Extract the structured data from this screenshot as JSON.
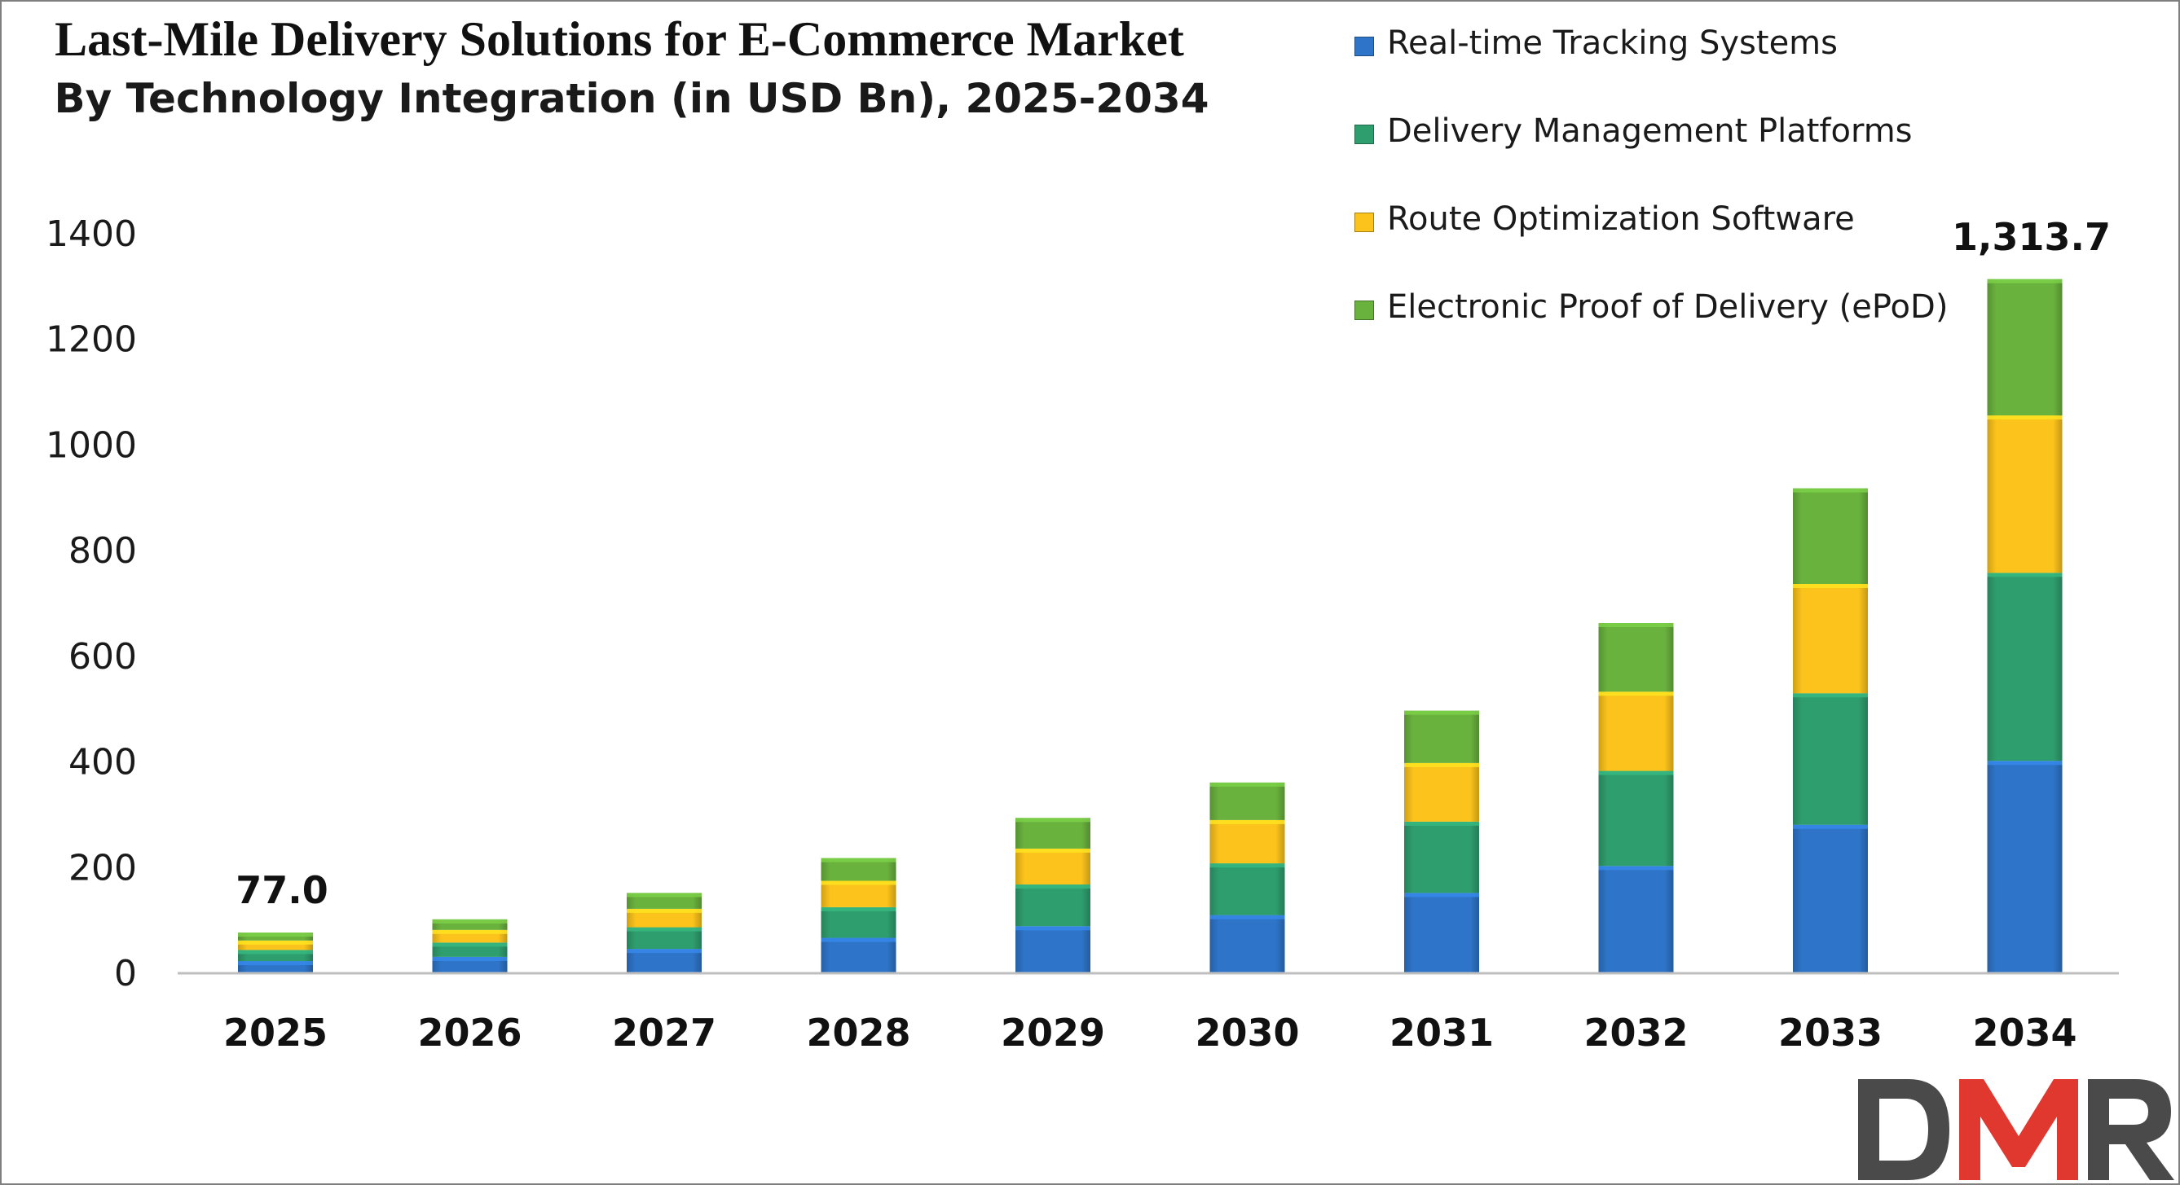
{
  "chart_data": {
    "type": "bar",
    "stacked": true,
    "title": "Last-Mile Delivery Solutions for E-Commerce Market",
    "subtitle": "By Technology Integration (in USD Bn), 2025-2034",
    "xlabel": "",
    "ylabel": "",
    "ylim": [
      0,
      1400
    ],
    "yticks": [
      "0",
      "200",
      "400",
      "600",
      "800",
      "1000",
      "1200",
      "1400"
    ],
    "grid": false,
    "legend_position": "top-right",
    "categories": [
      "2025",
      "2026",
      "2027",
      "2028",
      "2029",
      "2030",
      "2031",
      "2032",
      "2033",
      "2034"
    ],
    "series": [
      {
        "name": "Real-time Tracking Systems",
        "color": "#2e75c9",
        "values": [
          23,
          31,
          46,
          67,
          89,
          110,
          152,
          203,
          281,
          402
        ]
      },
      {
        "name": "Delivery Management Platforms",
        "color": "#2f9e6e",
        "values": [
          21,
          27,
          41,
          58,
          79,
          98,
          135,
          180,
          249,
          356
        ]
      },
      {
        "name": "Route Optimization Software",
        "color": "#fbc31b",
        "values": [
          18,
          24,
          35,
          50,
          68,
          82,
          111,
          150,
          207,
          298
        ]
      },
      {
        "name": "Electronic Proof of Delivery (ePoD)",
        "color": "#6ab23e",
        "values": [
          15,
          20,
          30,
          43,
          58,
          71,
          99,
          130,
          181,
          258
        ]
      }
    ],
    "data_labels": [
      {
        "category": "2025",
        "text": "77.0"
      },
      {
        "category": "2034",
        "text": "1,313.7"
      }
    ]
  },
  "logo": {
    "text": "DMR",
    "colors": [
      "#4a4a4a",
      "#e0382e"
    ]
  }
}
